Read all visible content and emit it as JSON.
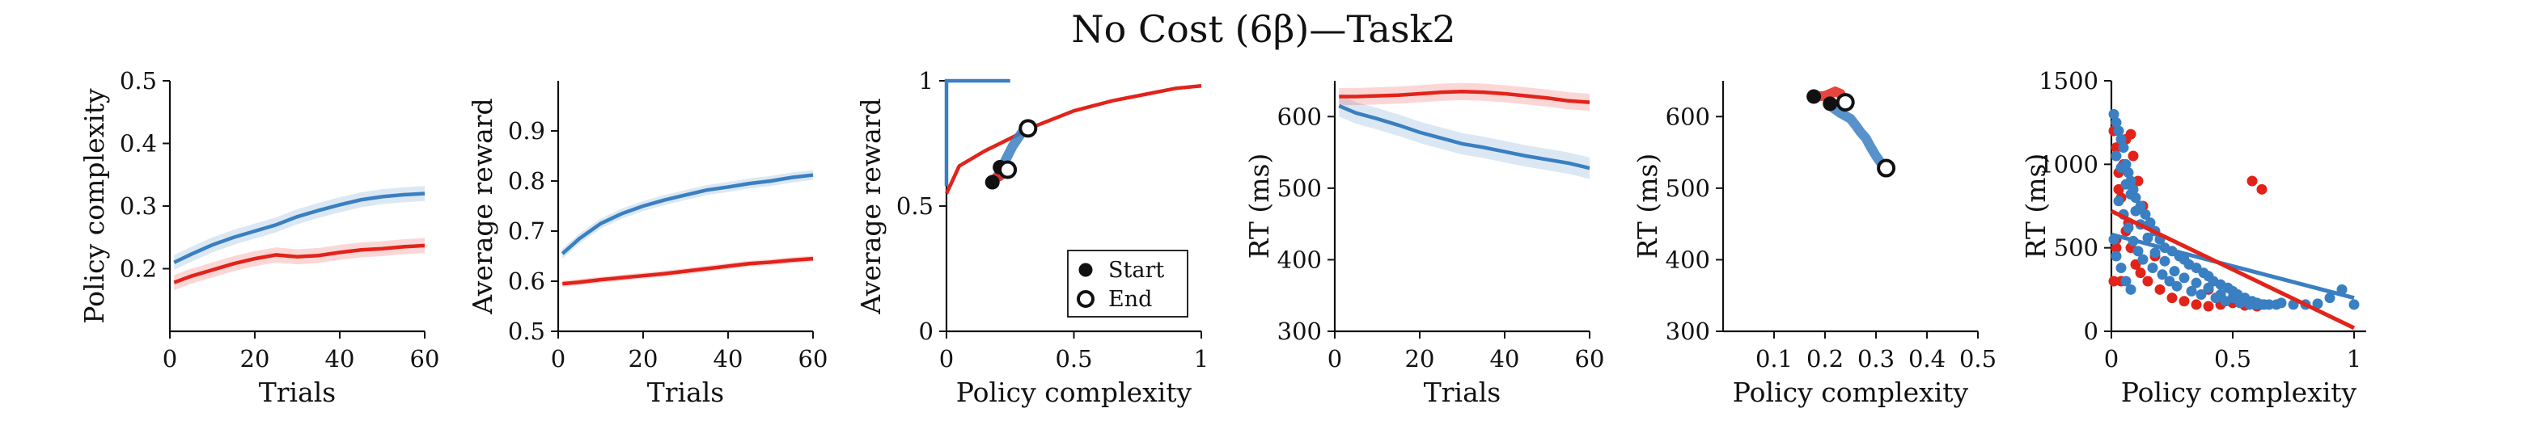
{
  "title": "No Cost (6β)—Task2",
  "colors": {
    "blue": "#3a7fc1",
    "red": "#e2231a",
    "black": "#111111"
  },
  "chart_data": [
    {
      "type": "line",
      "xlabel": "Trials",
      "ylabel": "Policy complexity",
      "xlim": [
        0,
        60
      ],
      "ylim": [
        0.1,
        0.5
      ],
      "xticks": [
        0,
        20,
        40,
        60
      ],
      "yticks": [
        0.2,
        0.3,
        0.4,
        0.5
      ],
      "series": [
        {
          "color": "blue",
          "x": [
            1,
            5,
            10,
            15,
            20,
            25,
            30,
            35,
            40,
            45,
            50,
            55,
            60
          ],
          "y": [
            0.21,
            0.223,
            0.238,
            0.25,
            0.26,
            0.27,
            0.283,
            0.293,
            0.302,
            0.31,
            0.315,
            0.318,
            0.32
          ],
          "band": 0.012
        },
        {
          "color": "red",
          "x": [
            1,
            5,
            10,
            15,
            20,
            25,
            30,
            35,
            40,
            45,
            50,
            55,
            60
          ],
          "y": [
            0.178,
            0.188,
            0.198,
            0.208,
            0.216,
            0.222,
            0.219,
            0.221,
            0.226,
            0.23,
            0.232,
            0.235,
            0.237
          ],
          "band": 0.012
        }
      ]
    },
    {
      "type": "line",
      "xlabel": "Trials",
      "ylabel": "Average reward",
      "xlim": [
        0,
        60
      ],
      "ylim": [
        0.5,
        1.0
      ],
      "xticks": [
        0,
        20,
        40,
        60
      ],
      "yticks": [
        0.5,
        0.6,
        0.7,
        0.8,
        0.9
      ],
      "series": [
        {
          "color": "blue",
          "x": [
            1,
            5,
            10,
            15,
            20,
            25,
            30,
            35,
            40,
            45,
            50,
            55,
            60
          ],
          "y": [
            0.655,
            0.685,
            0.715,
            0.735,
            0.75,
            0.762,
            0.772,
            0.782,
            0.788,
            0.795,
            0.8,
            0.807,
            0.812
          ],
          "band": 0.01
        },
        {
          "color": "red",
          "x": [
            1,
            5,
            10,
            15,
            20,
            25,
            30,
            35,
            40,
            45,
            50,
            55,
            60
          ],
          "y": [
            0.595,
            0.598,
            0.603,
            0.607,
            0.611,
            0.615,
            0.62,
            0.625,
            0.63,
            0.635,
            0.638,
            0.642,
            0.645
          ],
          "band": 0.006
        }
      ]
    },
    {
      "type": "line",
      "xlabel": "Policy complexity",
      "ylabel": "Average reward",
      "xlim": [
        0,
        1
      ],
      "ylim": [
        0,
        1
      ],
      "xticks": [
        0,
        0.5,
        1
      ],
      "yticks": [
        0,
        0.5,
        1
      ],
      "curves": [
        {
          "color": "blue",
          "x": [
            0.0,
            0.0,
            0.0,
            0.25
          ],
          "y": [
            0.58,
            0.75,
            1.0,
            1.0
          ]
        },
        {
          "color": "red",
          "x": [
            0.0,
            0.05,
            0.15,
            0.25,
            0.35,
            0.5,
            0.65,
            0.8,
            0.9,
            1.0
          ],
          "y": [
            0.55,
            0.66,
            0.72,
            0.77,
            0.82,
            0.88,
            0.92,
            0.95,
            0.97,
            0.98
          ]
        }
      ],
      "trajectories": [
        {
          "color": "blue",
          "x": [
            0.2,
            0.22,
            0.24,
            0.26,
            0.28,
            0.3,
            0.32
          ],
          "y": [
            0.62,
            0.66,
            0.7,
            0.74,
            0.77,
            0.8,
            0.81
          ]
        },
        {
          "color": "red",
          "x": [
            0.18,
            0.19,
            0.2,
            0.21,
            0.22,
            0.23,
            0.24
          ],
          "y": [
            0.6,
            0.61,
            0.615,
            0.62,
            0.63,
            0.64,
            0.645
          ]
        }
      ],
      "start_points": [
        {
          "x": 0.18,
          "y": 0.595
        },
        {
          "x": 0.21,
          "y": 0.655
        }
      ],
      "end_points": [
        {
          "x": 0.24,
          "y": 0.645
        },
        {
          "x": 0.32,
          "y": 0.81
        }
      ],
      "legend": {
        "position": "bottom-right",
        "entries": [
          "Start",
          "End"
        ]
      }
    },
    {
      "type": "line",
      "xlabel": "Trials",
      "ylabel": "RT (ms)",
      "xlim": [
        0,
        60
      ],
      "ylim": [
        300,
        650
      ],
      "xticks": [
        0,
        20,
        40,
        60
      ],
      "yticks": [
        300,
        400,
        500,
        600
      ],
      "series": [
        {
          "color": "blue",
          "x": [
            1,
            5,
            10,
            15,
            20,
            25,
            30,
            35,
            40,
            45,
            50,
            55,
            60
          ],
          "y": [
            615,
            605,
            597,
            588,
            578,
            570,
            562,
            557,
            551,
            545,
            540,
            535,
            528
          ],
          "band": 15
        },
        {
          "color": "red",
          "x": [
            1,
            5,
            10,
            15,
            20,
            25,
            30,
            35,
            40,
            45,
            50,
            55,
            60
          ],
          "y": [
            628,
            628,
            629,
            630,
            632,
            634,
            635,
            634,
            632,
            629,
            626,
            622,
            620
          ],
          "band": 12
        }
      ]
    },
    {
      "type": "scatter",
      "xlabel": "Policy complexity",
      "ylabel": "RT (ms)",
      "xlim": [
        0,
        0.5
      ],
      "ylim": [
        300,
        650
      ],
      "xticks": [
        0.1,
        0.2,
        0.3,
        0.4,
        0.5
      ],
      "yticks": [
        300,
        400,
        500,
        600
      ],
      "trajectories": [
        {
          "color": "blue",
          "x": [
            0.21,
            0.23,
            0.25,
            0.26,
            0.27,
            0.28,
            0.29,
            0.3,
            0.31,
            0.32
          ],
          "y": [
            615,
            605,
            597,
            588,
            578,
            570,
            557,
            545,
            535,
            528
          ]
        },
        {
          "color": "red",
          "x": [
            0.18,
            0.2,
            0.21,
            0.22,
            0.23,
            0.235,
            0.24
          ],
          "y": [
            628,
            629,
            632,
            635,
            632,
            626,
            620
          ]
        }
      ],
      "start_points": [
        {
          "x": 0.178,
          "y": 628
        },
        {
          "x": 0.21,
          "y": 618
        }
      ],
      "end_points": [
        {
          "x": 0.24,
          "y": 620
        },
        {
          "x": 0.32,
          "y": 528
        }
      ]
    },
    {
      "type": "scatter",
      "xlabel": "Policy complexity",
      "ylabel": "RT (ms)",
      "xlim": [
        0,
        1.05
      ],
      "ylim": [
        0,
        1500
      ],
      "xticks": [
        0,
        0.5,
        1
      ],
      "yticks": [
        0,
        500,
        1000,
        1500
      ],
      "series": [
        {
          "color": "red",
          "x": [
            0.01,
            0.02,
            0.03,
            0.04,
            0.05,
            0.06,
            0.08,
            0.1,
            0.12,
            0.15,
            0.2,
            0.25,
            0.3,
            0.35,
            0.4,
            0.45,
            0.5,
            0.55,
            0.6,
            0.05,
            0.03,
            0.07,
            0.09,
            0.02,
            0.11,
            0.04,
            0.06,
            0.13,
            0.18,
            0.58,
            0.62,
            0.4,
            0.01,
            0.02,
            0.08
          ],
          "y": [
            1200,
            1100,
            950,
            800,
            700,
            600,
            500,
            400,
            350,
            300,
            250,
            200,
            180,
            160,
            150,
            160,
            170,
            155,
            150,
            1000,
            850,
            650,
            1050,
            550,
            900,
            300,
            1150,
            750,
            450,
            900,
            850,
            250,
            300,
            500,
            1180
          ]
        },
        {
          "color": "blue",
          "x": [
            0.01,
            0.02,
            0.03,
            0.04,
            0.05,
            0.06,
            0.07,
            0.08,
            0.09,
            0.1,
            0.12,
            0.14,
            0.16,
            0.18,
            0.2,
            0.22,
            0.25,
            0.28,
            0.3,
            0.32,
            0.35,
            0.38,
            0.4,
            0.42,
            0.45,
            0.48,
            0.5,
            0.52,
            0.55,
            0.58,
            0.6,
            0.62,
            0.65,
            0.68,
            0.7,
            0.75,
            0.8,
            0.85,
            0.9,
            0.95,
            1.0,
            0.02,
            0.04,
            0.06,
            0.08,
            0.1,
            0.12,
            0.15,
            0.18,
            0.22,
            0.26,
            0.3,
            0.35,
            0.4,
            0.45,
            0.5,
            0.55,
            0.6,
            0.03,
            0.05,
            0.07,
            0.09,
            0.11,
            0.13,
            0.17,
            0.21,
            0.24,
            0.27,
            0.33,
            0.37,
            0.43,
            0.47,
            0.53,
            0.57,
            0.63,
            0.01,
            0.02,
            0.04,
            0.06,
            0.08
          ],
          "y": [
            1300,
            1250,
            1200,
            1150,
            1100,
            1000,
            950,
            900,
            850,
            800,
            750,
            700,
            650,
            600,
            550,
            500,
            480,
            450,
            430,
            400,
            380,
            350,
            330,
            300,
            280,
            260,
            240,
            220,
            200,
            180,
            170,
            160,
            160,
            160,
            170,
            160,
            160,
            165,
            200,
            250,
            160,
            1050,
            980,
            880,
            820,
            720,
            640,
            560,
            470,
            420,
            360,
            320,
            290,
            260,
            220,
            200,
            180,
            160,
            780,
            700,
            620,
            540,
            480,
            430,
            380,
            340,
            300,
            270,
            240,
            220,
            200,
            180,
            170,
            160,
            160,
            550,
            450,
            380,
            300,
            250
          ]
        }
      ],
      "fits": [
        {
          "color": "blue",
          "x": [
            0,
            1
          ],
          "y": [
            580,
            200
          ]
        },
        {
          "color": "red",
          "x": [
            0,
            1
          ],
          "y": [
            720,
            20
          ]
        }
      ]
    }
  ]
}
